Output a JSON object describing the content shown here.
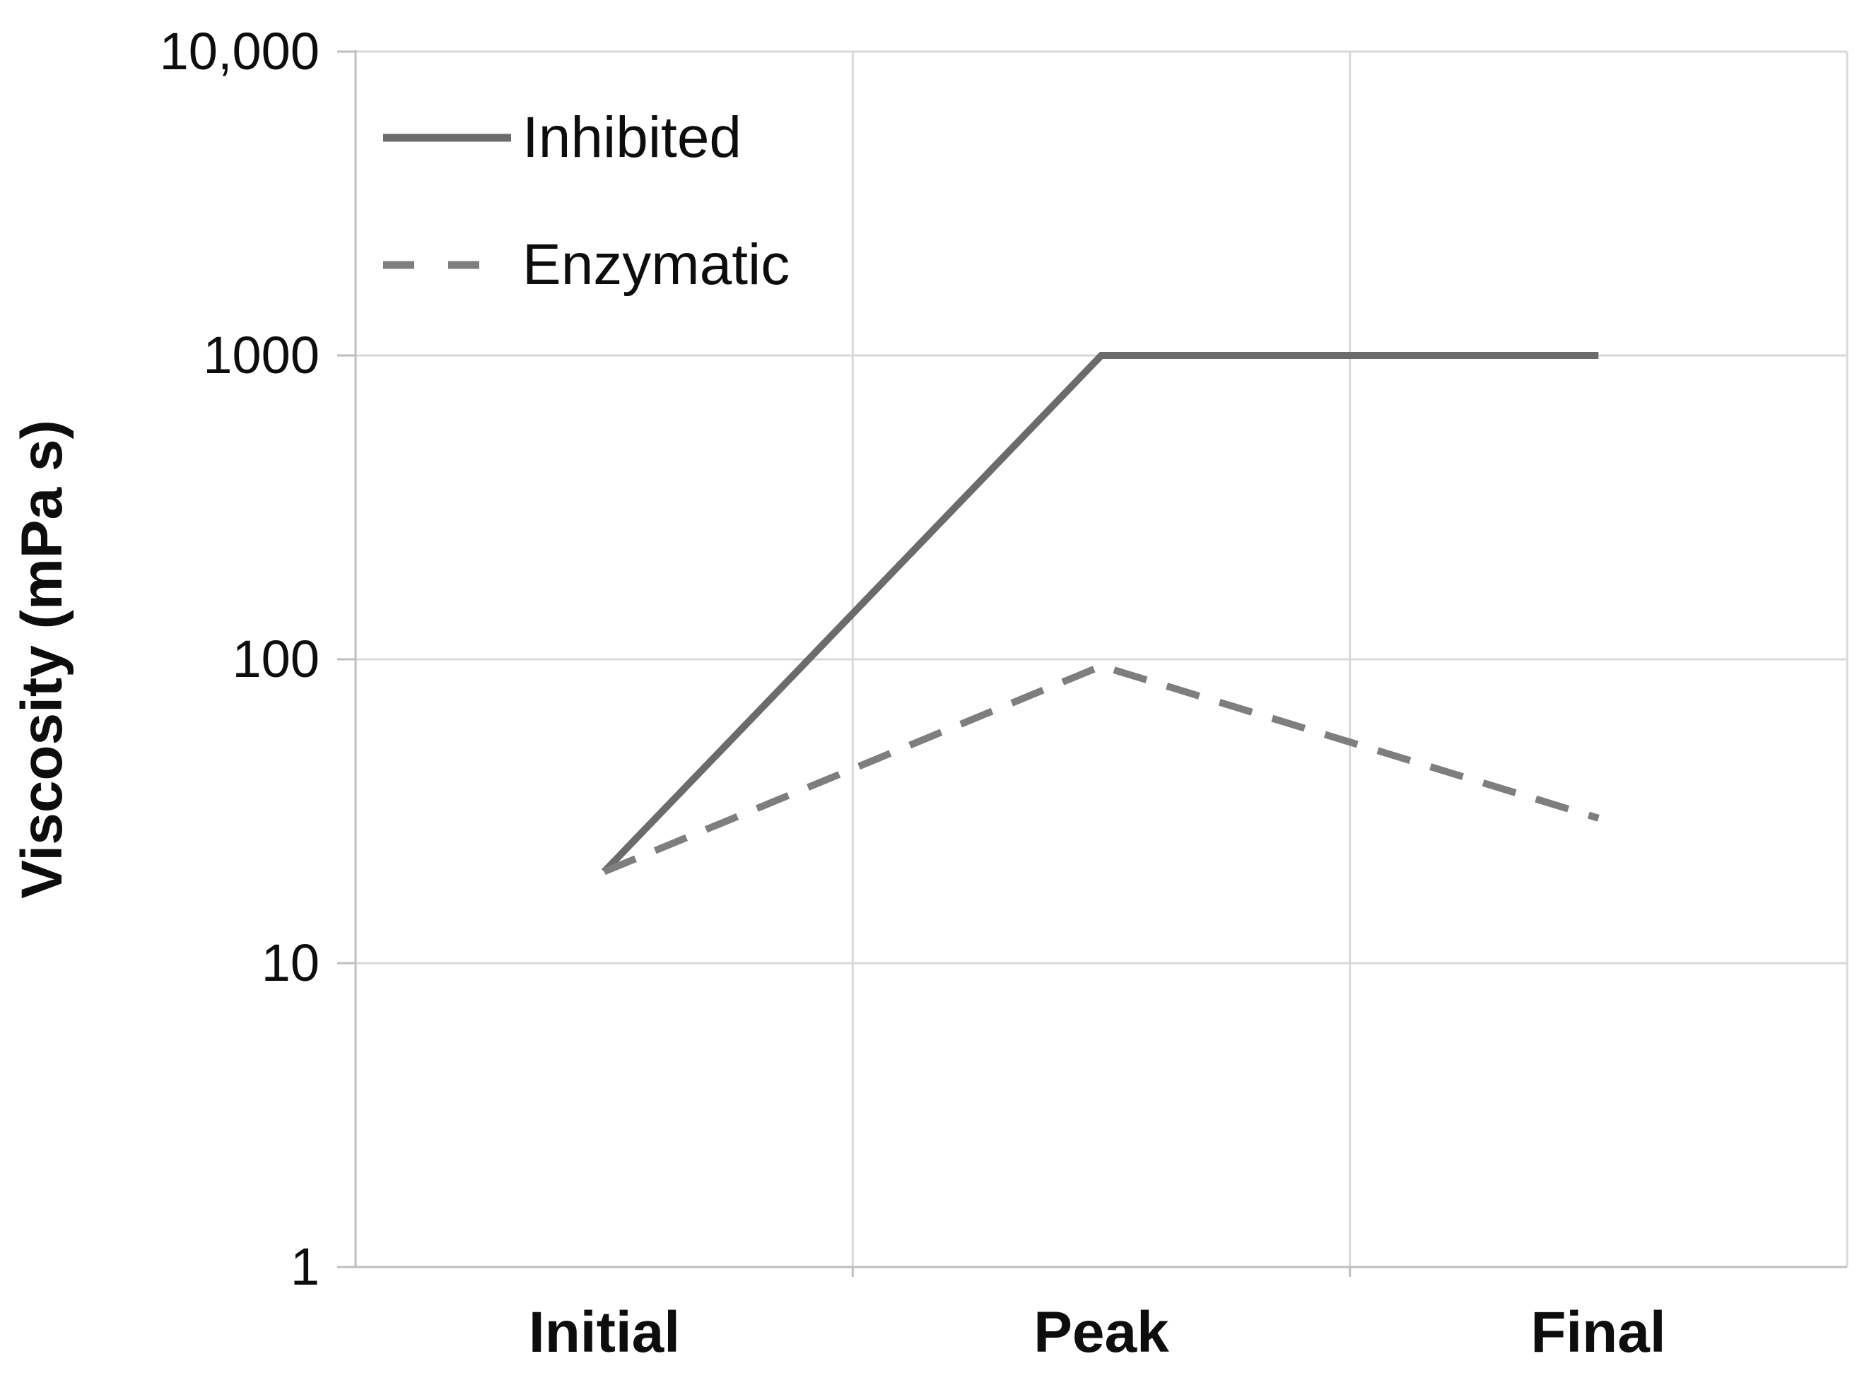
{
  "chart_data": {
    "type": "line",
    "title": "",
    "categories": [
      "Initial",
      "Peak",
      "Final"
    ],
    "series": [
      {
        "name": "Inhibited",
        "style": "solid",
        "color": "#6b6b6b",
        "values": [
          20,
          1000,
          1000
        ]
      },
      {
        "name": "Enzymatic",
        "style": "dashed",
        "color": "#7e7e7e",
        "values": [
          20,
          95,
          30
        ]
      }
    ],
    "xlabel": "",
    "ylabel": "Viscosity (mPa s)",
    "yscale": "log",
    "ylim": [
      1,
      10000
    ],
    "ytick_labels": [
      "10,000",
      "1000",
      "100",
      "10",
      "1"
    ],
    "ytick_values": [
      10000,
      1000,
      100,
      10,
      1
    ],
    "grid": true,
    "legend_position": "top-left"
  },
  "colors": {
    "background": "#ffffff",
    "gridline": "#d9d9d9",
    "axis": "#bfbfbf",
    "text": "#0d0d0d"
  }
}
